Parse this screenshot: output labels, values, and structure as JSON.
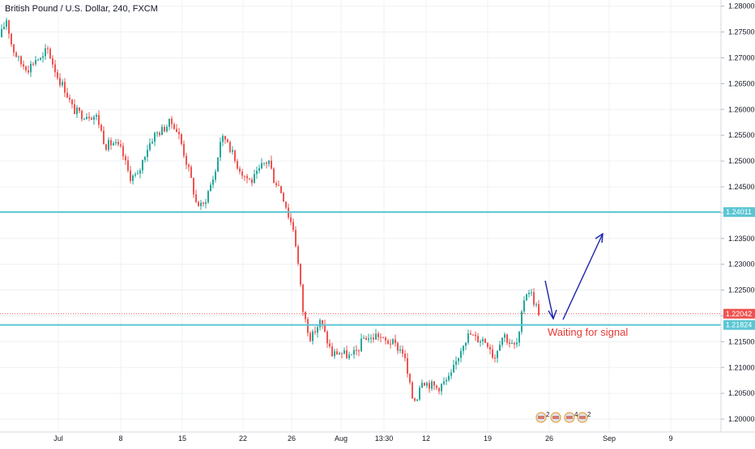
{
  "header": {
    "symbol_line": "British Pound / U.S. Dollar, 240, FXCM"
  },
  "annotation": {
    "text": "Waiting for signal"
  },
  "events": [
    {
      "count": "2"
    },
    {
      "count": ""
    },
    {
      "count": "4"
    },
    {
      "count": "2"
    }
  ],
  "colors": {
    "up": "#26a69a",
    "down": "#ef5350",
    "level": "#5bc6d3",
    "price_line": "#ef5350",
    "arrow": "#1a23a8",
    "annotation": "#e53935",
    "grid": "#eef0f3",
    "axis_text": "#131722"
  },
  "chart_data": {
    "type": "candlestick",
    "title": "British Pound / U.S. Dollar, 240, FXCM",
    "x_ticks": [
      "Jul",
      "8",
      "15",
      "22",
      "26",
      "Aug",
      "13:30",
      "12",
      "19",
      "26",
      "Sep",
      "9"
    ],
    "y_ticks": [
      "1.28000",
      "1.27500",
      "1.27000",
      "1.26500",
      "1.26000",
      "1.25500",
      "1.25000",
      "1.24500",
      "1.24000",
      "1.23500",
      "1.23000",
      "1.22500",
      "1.22000",
      "1.21500",
      "1.21000",
      "1.20500",
      "1.20000"
    ],
    "ylim": [
      1.1975,
      1.2812
    ],
    "levels": [
      {
        "label": "1.24011",
        "value": 1.24011,
        "style": "solid"
      },
      {
        "label": "1.21824",
        "value": 1.21824,
        "style": "solid"
      }
    ],
    "last_price": {
      "label": "1.22042",
      "value": 1.22042,
      "style": "dotted"
    },
    "path_anchors": [
      [
        0,
        1.274
      ],
      [
        8,
        1.2775
      ],
      [
        15,
        1.272
      ],
      [
        25,
        1.269
      ],
      [
        35,
        1.268
      ],
      [
        45,
        1.27
      ],
      [
        52,
        1.2695
      ],
      [
        58,
        1.272
      ],
      [
        65,
        1.269
      ],
      [
        72,
        1.266
      ],
      [
        80,
        1.264
      ],
      [
        90,
        1.26
      ],
      [
        100,
        1.259
      ],
      [
        110,
        1.259
      ],
      [
        120,
        1.2585
      ],
      [
        130,
        1.253
      ],
      [
        140,
        1.2535
      ],
      [
        150,
        1.252
      ],
      [
        160,
        1.247
      ],
      [
        170,
        1.247
      ],
      [
        180,
        1.252
      ],
      [
        190,
        1.255
      ],
      [
        200,
        1.256
      ],
      [
        210,
        1.2575
      ],
      [
        215,
        1.257
      ],
      [
        222,
        1.2545
      ],
      [
        228,
        1.251
      ],
      [
        235,
        1.247
      ],
      [
        242,
        1.242
      ],
      [
        250,
        1.241
      ],
      [
        258,
        1.2445
      ],
      [
        266,
        1.248
      ],
      [
        272,
        1.254
      ],
      [
        280,
        1.2545
      ],
      [
        290,
        1.25
      ],
      [
        300,
        1.2475
      ],
      [
        310,
        1.246
      ],
      [
        318,
        1.2475
      ],
      [
        325,
        1.2495
      ],
      [
        332,
        1.25
      ],
      [
        338,
        1.2465
      ],
      [
        345,
        1.245
      ],
      [
        352,
        1.242
      ],
      [
        356,
        1.2395
      ],
      [
        362,
        1.237
      ],
      [
        366,
        1.233
      ],
      [
        370,
        1.227
      ],
      [
        374,
        1.221
      ],
      [
        378,
        1.2185
      ],
      [
        384,
        1.2155
      ],
      [
        390,
        1.2175
      ],
      [
        396,
        1.219
      ],
      [
        402,
        1.216
      ],
      [
        410,
        1.2125
      ],
      [
        418,
        1.213
      ],
      [
        426,
        1.2125
      ],
      [
        434,
        1.212
      ],
      [
        442,
        1.2135
      ],
      [
        450,
        1.216
      ],
      [
        458,
        1.2155
      ],
      [
        466,
        1.2165
      ],
      [
        474,
        1.215
      ],
      [
        482,
        1.215
      ],
      [
        490,
        1.214
      ],
      [
        498,
        1.213
      ],
      [
        505,
        1.207
      ],
      [
        510,
        1.2035
      ],
      [
        515,
        1.2045
      ],
      [
        520,
        1.208
      ],
      [
        526,
        1.207
      ],
      [
        534,
        1.2065
      ],
      [
        540,
        1.206
      ],
      [
        548,
        1.207
      ],
      [
        556,
        1.208
      ],
      [
        564,
        1.2115
      ],
      [
        572,
        1.215
      ],
      [
        580,
        1.2165
      ],
      [
        588,
        1.2155
      ],
      [
        596,
        1.2155
      ],
      [
        604,
        1.2145
      ],
      [
        610,
        1.2115
      ],
      [
        616,
        1.215
      ],
      [
        622,
        1.2165
      ],
      [
        628,
        1.215
      ],
      [
        634,
        1.214
      ],
      [
        640,
        1.215
      ],
      [
        644,
        1.22
      ],
      [
        648,
        1.2245
      ],
      [
        654,
        1.225
      ],
      [
        660,
        1.2225
      ],
      [
        666,
        1.2205
      ]
    ]
  }
}
